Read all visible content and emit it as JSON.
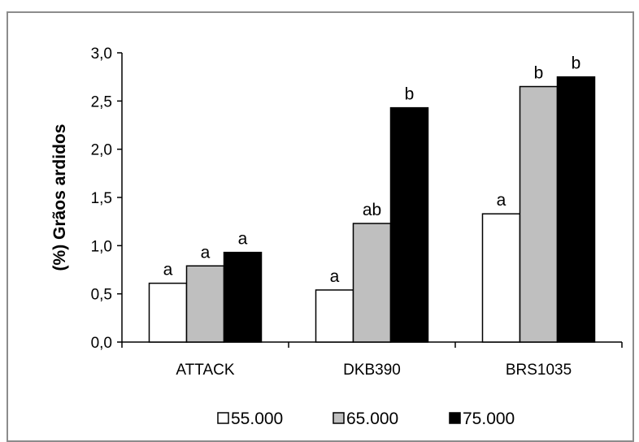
{
  "chart_data": {
    "type": "bar",
    "title": "",
    "xlabel": "",
    "ylabel": "(%) Grãos ardidos",
    "ylim": [
      0,
      3.0
    ],
    "yticks": [
      "0,0",
      "0,5",
      "1,0",
      "1,5",
      "2,0",
      "2,5",
      "3,0"
    ],
    "categories": [
      "ATTACK",
      "DKB390",
      "BRS1035"
    ],
    "grid": false,
    "legend_position": "bottom",
    "series": [
      {
        "name": "55.000",
        "color": "#ffffff",
        "values": [
          0.61,
          0.54,
          1.33
        ],
        "labels": [
          "a",
          "a",
          "a"
        ]
      },
      {
        "name": "65.000",
        "color": "#bfbfbf",
        "values": [
          0.79,
          1.23,
          2.65
        ],
        "labels": [
          "a",
          "ab",
          "b"
        ]
      },
      {
        "name": "75.000",
        "color": "#000000",
        "values": [
          0.93,
          2.43,
          2.75
        ],
        "labels": [
          "a",
          "b",
          "b"
        ]
      }
    ]
  }
}
